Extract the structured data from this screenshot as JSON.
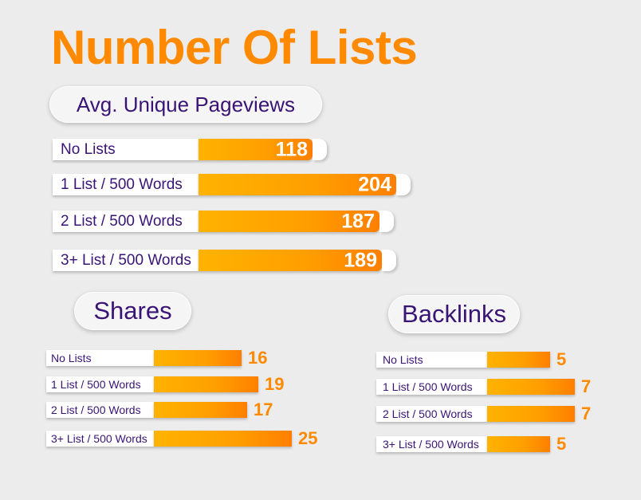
{
  "title": "Number Of Lists",
  "colors": {
    "accent": "#ff8a00",
    "label_text": "#3a1475",
    "background": "#ececec"
  },
  "chart_data": [
    {
      "type": "bar",
      "orientation": "horizontal",
      "title": "Avg. Unique Pageviews",
      "categories": [
        "No Lists",
        "1 List / 500 Words",
        "2 List / 500 Words",
        "3+ List / 500 Words"
      ],
      "values": [
        118,
        204,
        187,
        189
      ]
    },
    {
      "type": "bar",
      "orientation": "horizontal",
      "title": "Shares",
      "categories": [
        "No Lists",
        "1 List / 500 Words",
        "2 List / 500 Words",
        "3+ List / 500 Words"
      ],
      "values": [
        16,
        19,
        17,
        25
      ]
    },
    {
      "type": "bar",
      "orientation": "horizontal",
      "title": "Backlinks",
      "categories": [
        "No Lists",
        "1 List / 500 Words",
        "2 List / 500 Words",
        "3+ List / 500 Words"
      ],
      "values": [
        5,
        7,
        7,
        5
      ]
    }
  ]
}
